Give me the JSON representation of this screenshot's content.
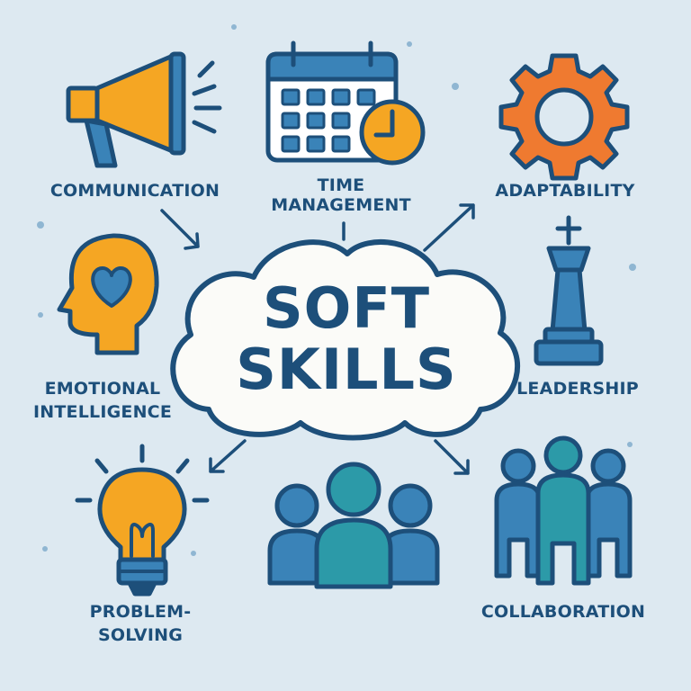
{
  "title": {
    "line1": "SOFT",
    "line2": "SKILLS"
  },
  "skills": {
    "communication": "COMMUNICATION",
    "time_management_1": "TIME",
    "time_management_2": "MANAGEMENT",
    "adaptability": "ADAPTABILITY",
    "emotional_1": "EMOTIONAL",
    "emotional_2": "INTELLIGENCE",
    "leadership": "LEADERSHIP",
    "problem_1": "PROBLEM-",
    "problem_2": "SOLVING",
    "collaboration": "COLLABORATION"
  },
  "colors": {
    "background": "#dde9f1",
    "navy": "#1d4f7a",
    "orange": "#f5a623",
    "deep_orange": "#ef7a30",
    "blue": "#3a83b8",
    "teal": "#2c9aa8",
    "cloud": "#fbfbf8"
  },
  "icons": [
    "megaphone-icon",
    "calendar-clock-icon",
    "gear-icon",
    "head-heart-icon",
    "chess-king-icon",
    "lightbulb-icon",
    "group-icon",
    "team-icon"
  ]
}
